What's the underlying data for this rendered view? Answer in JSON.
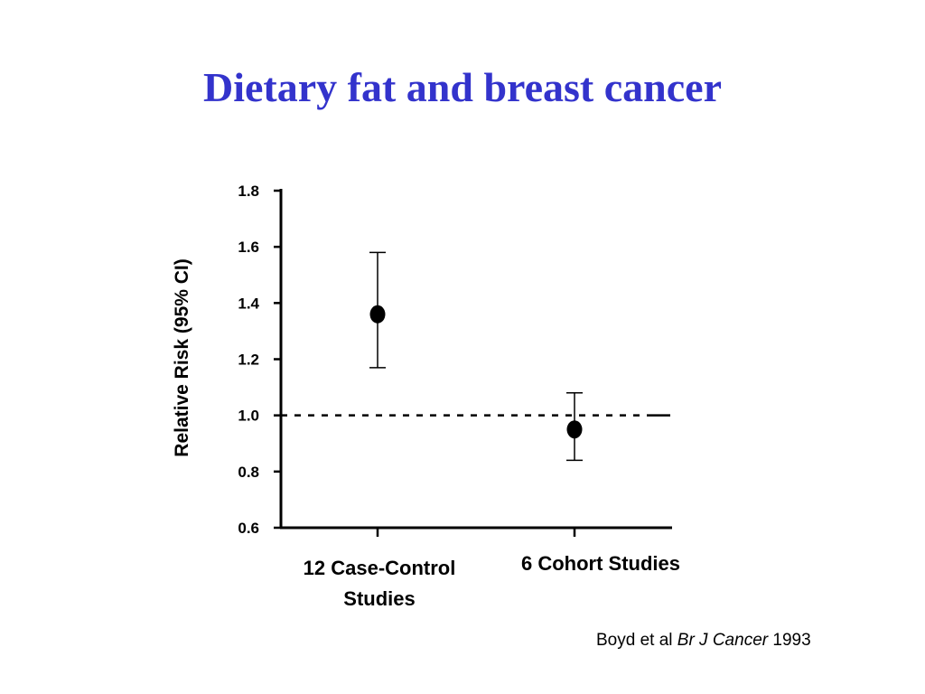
{
  "slide": {
    "title": "Dietary fat and breast cancer"
  },
  "citation": {
    "authors": "Boyd et al",
    "journal": "Br J Cancer",
    "year": "1993"
  },
  "chart_data": {
    "type": "scatter",
    "title": "Dietary fat and breast cancer",
    "ylabel": "Relative Risk (95% CI)",
    "xlabel": "",
    "ylim": [
      0.6,
      1.8
    ],
    "yticks": [
      "1.8",
      "1.6",
      "1.4",
      "1.2",
      "1.0",
      "0.8",
      "0.6"
    ],
    "categories": [
      {
        "lines": [
          "12 Case-Control",
          "Studies"
        ],
        "value": 1.36,
        "ci_low": 1.17,
        "ci_high": 1.58
      },
      {
        "lines": [
          "6 Cohort Studies"
        ],
        "value": 0.95,
        "ci_low": 0.84,
        "ci_high": 1.08
      }
    ],
    "reference_line": {
      "y": 1.0,
      "style": "dashed"
    },
    "grid": false,
    "colors": {
      "title": "#3333cc",
      "marks": "#000000"
    }
  }
}
